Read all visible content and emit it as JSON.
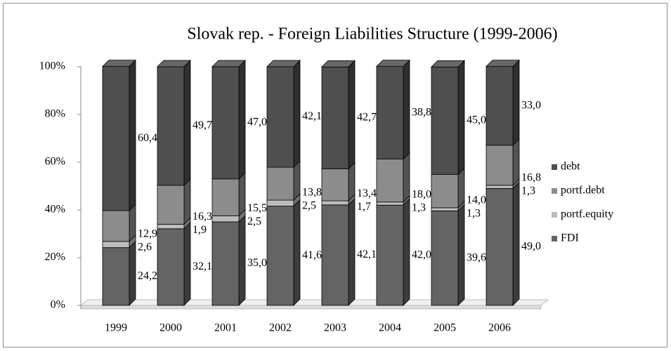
{
  "chart_data": {
    "type": "bar",
    "stacked": true,
    "title": "Slovak rep. - Foreign Liabilities Structure (1999-2006)",
    "categories": [
      "1999",
      "2000",
      "2001",
      "2002",
      "2003",
      "2004",
      "2005",
      "2006"
    ],
    "series": [
      {
        "name": "FDI",
        "color": "#646464",
        "values": [
          24.2,
          32.1,
          35.0,
          41.6,
          42.1,
          42.0,
          39.6,
          49.0
        ],
        "value_labels": [
          "24,2",
          "32,1",
          "35,0",
          "41,6",
          "42,1",
          "42,0",
          "39,6",
          "49,0"
        ]
      },
      {
        "name": "portf.equity",
        "color": "#bdbdbd",
        "values": [
          2.6,
          1.9,
          2.5,
          2.5,
          1.7,
          1.3,
          1.3,
          1.3
        ],
        "value_labels": [
          "2,6",
          "1,9",
          "2,5",
          "2,5",
          "1,7",
          "1,3",
          "1,3",
          "1,3"
        ]
      },
      {
        "name": "portf.debt",
        "color": "#8c8c8c",
        "values": [
          12.9,
          16.3,
          15.5,
          13.8,
          13.4,
          18.0,
          14.0,
          16.8
        ],
        "value_labels": [
          "12,9",
          "16,3",
          "15,5",
          "13,8",
          "13,4",
          "18,0",
          "14,0",
          "16,8"
        ]
      },
      {
        "name": "debt",
        "color": "#4f4f4f",
        "values": [
          60.4,
          49.7,
          47.0,
          42.1,
          42.7,
          38.8,
          45.0,
          33.0
        ],
        "value_labels": [
          "60,4",
          "49,7",
          "47,0",
          "42,1",
          "42,7",
          "38,8",
          "45,0",
          "33,0"
        ]
      }
    ],
    "ylim": [
      0,
      100
    ],
    "yticks": [
      {
        "value": 0,
        "label": "0%"
      },
      {
        "value": 20,
        "label": "20%"
      },
      {
        "value": 40,
        "label": "40%"
      },
      {
        "value": 60,
        "label": "60%"
      },
      {
        "value": 80,
        "label": "80%"
      },
      {
        "value": 100,
        "label": "100%"
      }
    ],
    "legend": "right"
  }
}
